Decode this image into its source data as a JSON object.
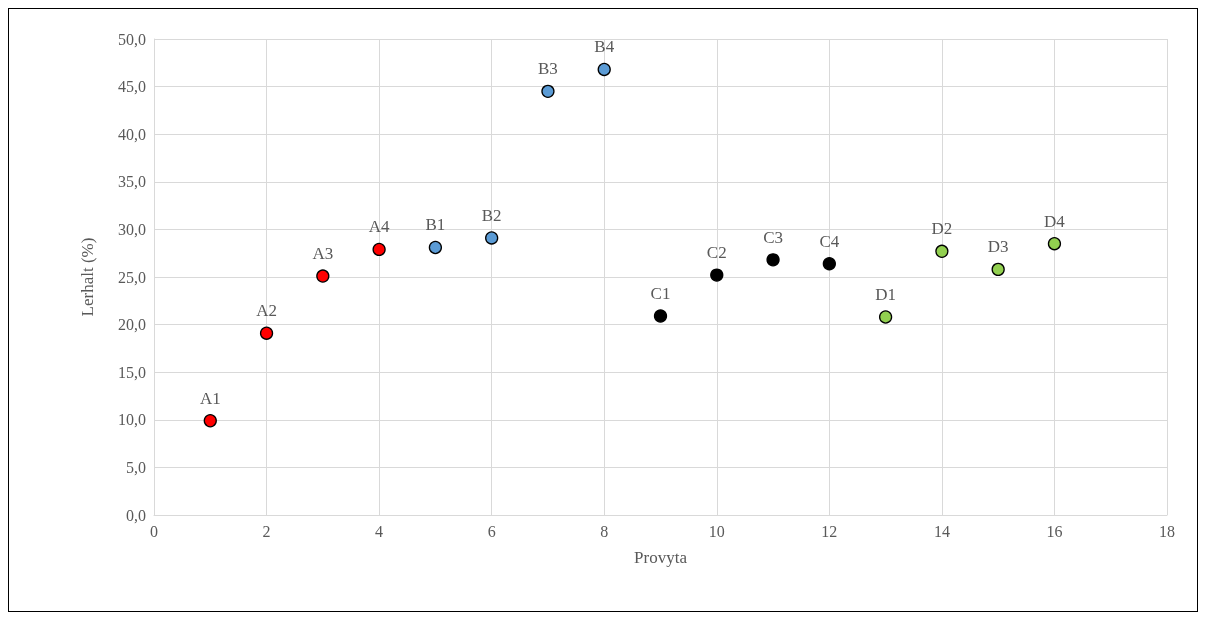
{
  "chart_data": {
    "type": "scatter",
    "xlabel": "Provyta",
    "ylabel": "Lerhalt (%)",
    "series": [
      {
        "color": "#ff0000",
        "x": [
          1,
          2,
          3,
          4
        ],
        "values": [
          9.9,
          19.1,
          25.1,
          27.9
        ]
      },
      {
        "color": "#5b9bd5",
        "x": [
          5,
          6,
          7,
          8
        ],
        "values": [
          28.1,
          29.1,
          44.5,
          46.8
        ]
      },
      {
        "color": "#000000",
        "x": [
          9,
          10,
          11,
          12
        ],
        "values": [
          20.9,
          25.2,
          26.8,
          26.4
        ]
      },
      {
        "color": "#92d050",
        "x": [
          13,
          14,
          15,
          16
        ],
        "values": [
          20.8,
          27.7,
          25.8,
          28.5
        ]
      }
    ],
    "annotations": [
      {
        "text": "A1",
        "x": 1,
        "y": 9.9
      },
      {
        "text": "A2",
        "x": 2,
        "y": 19.1
      },
      {
        "text": "A3",
        "x": 3,
        "y": 25.1
      },
      {
        "text": "A4",
        "x": 4,
        "y": 27.9
      },
      {
        "text": "B1",
        "x": 5,
        "y": 28.1
      },
      {
        "text": "B2",
        "x": 6,
        "y": 29.1
      },
      {
        "text": "B3",
        "x": 7,
        "y": 44.5
      },
      {
        "text": "B4",
        "x": 8,
        "y": 46.8
      },
      {
        "text": "C1",
        "x": 9,
        "y": 20.9
      },
      {
        "text": "C2",
        "x": 10,
        "y": 25.2
      },
      {
        "text": "C3",
        "x": 11,
        "y": 26.8
      },
      {
        "text": "C4",
        "x": 12,
        "y": 26.4
      },
      {
        "text": "D1",
        "x": 13,
        "y": 20.8
      },
      {
        "text": "D2",
        "x": 14,
        "y": 27.7
      },
      {
        "text": "D3",
        "x": 15,
        "y": 25.8
      },
      {
        "text": "D4",
        "x": 16,
        "y": 28.5
      }
    ],
    "xlim": [
      0,
      18
    ],
    "xticks": [
      0,
      2,
      4,
      6,
      8,
      10,
      12,
      14,
      16,
      18
    ],
    "ylim": [
      0,
      50
    ],
    "yticks": [
      {
        "value": 0,
        "label": "0,0"
      },
      {
        "value": 5,
        "label": "5,0"
      },
      {
        "value": 10,
        "label": "10,0"
      },
      {
        "value": 15,
        "label": "15,0"
      },
      {
        "value": 20,
        "label": "20,0"
      },
      {
        "value": 25,
        "label": "25,0"
      },
      {
        "value": 30,
        "label": "30,0"
      },
      {
        "value": 35,
        "label": "35,0"
      },
      {
        "value": 40,
        "label": "40,0"
      },
      {
        "value": 45,
        "label": "45,0"
      },
      {
        "value": 50,
        "label": "50,0"
      }
    ],
    "grid": true,
    "marker": "circle"
  }
}
